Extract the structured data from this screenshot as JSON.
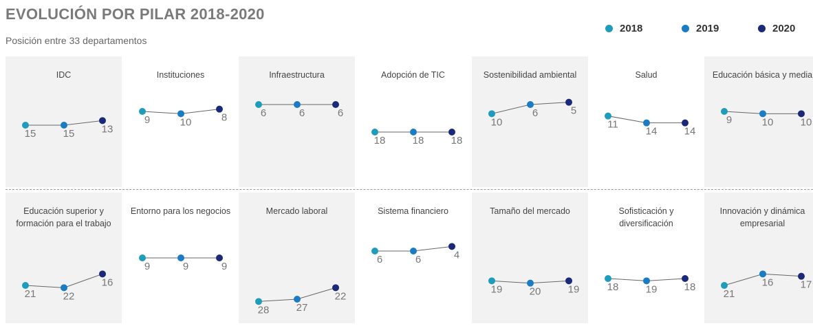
{
  "chart_data": {
    "type": "line",
    "title": "EVOLUCIÓN POR PILAR 2018-2020",
    "subtitle": "Posición entre 33 departamentos",
    "categories": [
      "2018",
      "2019",
      "2020"
    ],
    "colors": [
      "#1e9cb9",
      "#1b7cc3",
      "#1b2a78"
    ],
    "ylim": [
      0,
      33
    ],
    "y_inverted": true,
    "panels": [
      {
        "title": "IDC",
        "values": [
          15,
          15,
          13
        ]
      },
      {
        "title": "Instituciones",
        "values": [
          9,
          10,
          8
        ]
      },
      {
        "title": "Infraestructura",
        "values": [
          6,
          6,
          6
        ]
      },
      {
        "title": "Adopción de TIC",
        "values": [
          18,
          18,
          18
        ]
      },
      {
        "title": "Sostenibilidad ambiental",
        "values": [
          10,
          6,
          5
        ]
      },
      {
        "title": "Salud",
        "values": [
          11,
          14,
          14
        ]
      },
      {
        "title": "Educación básica y media",
        "values": [
          9,
          10,
          10
        ]
      },
      {
        "title": "Educación superior y formación para el trabajo",
        "values": [
          21,
          22,
          16
        ]
      },
      {
        "title": "Entorno para los negocios",
        "values": [
          9,
          9,
          9
        ]
      },
      {
        "title": "Mercado laboral",
        "values": [
          28,
          27,
          22
        ]
      },
      {
        "title": "Sistema financiero",
        "values": [
          6,
          6,
          4
        ]
      },
      {
        "title": "Tamaño del mercado",
        "values": [
          19,
          20,
          19
        ]
      },
      {
        "title": "Sofisticación y diversificación",
        "values": [
          18,
          19,
          18
        ]
      },
      {
        "title": "Innovación y dinámica empresarial",
        "values": [
          21,
          16,
          17
        ]
      }
    ]
  }
}
